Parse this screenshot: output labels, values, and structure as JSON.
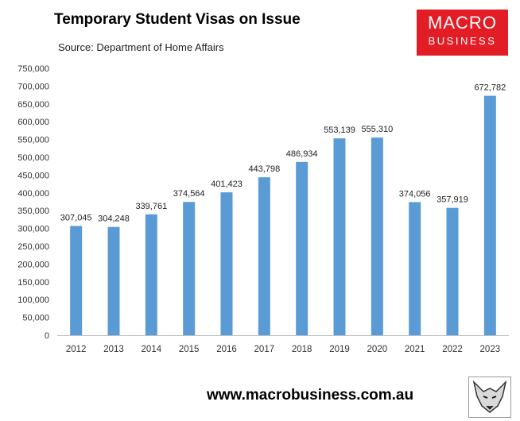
{
  "title": "Temporary Student Visas on Issue",
  "subtitle": "Source: Department of Home Affairs",
  "logo": {
    "line1": "MACRO",
    "line2": "BUSINESS",
    "color": "#e21d25"
  },
  "website": "www.macrobusiness.com.au",
  "chart_data": {
    "type": "bar",
    "title": "Temporary Student Visas on Issue",
    "xlabel": "",
    "ylabel": "",
    "categories": [
      "2012",
      "2013",
      "2014",
      "2015",
      "2016",
      "2017",
      "2018",
      "2019",
      "2020",
      "2021",
      "2022",
      "2023"
    ],
    "values": [
      307045,
      304248,
      339761,
      374564,
      401423,
      443798,
      486934,
      553139,
      555310,
      374056,
      357919,
      672782
    ],
    "value_labels": [
      "307,045",
      "304,248",
      "339,761",
      "374,564",
      "401,423",
      "443,798",
      "486,934",
      "553,139",
      "555,310",
      "374,056",
      "357,919",
      "672,782"
    ],
    "yticks": [
      "0",
      "50,000",
      "100,000",
      "150,000",
      "200,000",
      "250,000",
      "300,000",
      "350,000",
      "400,000",
      "450,000",
      "500,000",
      "550,000",
      "600,000",
      "650,000",
      "700,000",
      "750,000"
    ],
    "ylim": [
      0,
      750000
    ],
    "bar_color": "#5b9bd5",
    "grid": false,
    "legend": "none"
  }
}
